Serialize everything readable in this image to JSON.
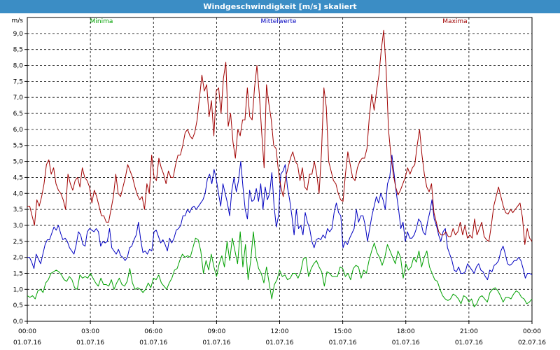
{
  "window": {
    "title": "Windgeschwindigkeit [m/s] skaliert"
  },
  "chart_data": {
    "type": "line",
    "title": "Windgeschwindigkeit [m/s] skaliert",
    "ylabel": "m/s",
    "xlabel": "",
    "ylim": [
      0,
      9.5
    ],
    "xlim": [
      0,
      24
    ],
    "grid": true,
    "legend_placement": "top",
    "y_ticks": [
      "0,0",
      "0,5",
      "1,0",
      "1,5",
      "2,0",
      "2,5",
      "3,0",
      "3,5",
      "4,0",
      "4,5",
      "5,0",
      "5,5",
      "6,0",
      "6,5",
      "7,0",
      "7,5",
      "8,0",
      "8,5",
      "9,0"
    ],
    "x_ticks": [
      {
        "time": "00:00",
        "date": "01.07.16"
      },
      {
        "time": "03:00",
        "date": "01.07.16"
      },
      {
        "time": "06:00",
        "date": "01.07.16"
      },
      {
        "time": "09:00",
        "date": "01.07.16"
      },
      {
        "time": "12:00",
        "date": "01.07.16"
      },
      {
        "time": "15:00",
        "date": "01.07.16"
      },
      {
        "time": "18:00",
        "date": "01.07.16"
      },
      {
        "time": "21:00",
        "date": "01.07.16"
      },
      {
        "time": "00:00",
        "date": "02.07.16"
      }
    ],
    "series": [
      {
        "name": "Minima",
        "color": "#00a000",
        "values": [
          0.8,
          0.75,
          0.8,
          0.7,
          0.95,
          1.0,
          0.9,
          1.2,
          1.3,
          1.5,
          1.55,
          1.6,
          1.55,
          1.45,
          1.3,
          1.25,
          1.4,
          1.3,
          1.05,
          1.0,
          1.45,
          1.35,
          1.4,
          1.35,
          1.5,
          1.35,
          1.2,
          1.1,
          1.35,
          1.15,
          1.15,
          1.1,
          1.3,
          1.0,
          1.2,
          1.35,
          1.15,
          1.1,
          1.25,
          1.65,
          1.2,
          1.0,
          1.05,
          1.0,
          0.9,
          1.0,
          1.2,
          1.05,
          1.35,
          1.3,
          1.45,
          1.2,
          1.1,
          1.0,
          1.2,
          1.35,
          1.6,
          1.65,
          1.9,
          2.1,
          2.0,
          2.05,
          2.0,
          2.3,
          2.6,
          2.55,
          2.2,
          1.5,
          1.9,
          1.6,
          2.1,
          1.7,
          1.4,
          1.8,
          2.05,
          1.7,
          2.5,
          1.9,
          2.6,
          2.2,
          1.8,
          2.8,
          1.7,
          2.4,
          1.3,
          1.9,
          2.8,
          2.0,
          1.65,
          1.5,
          1.2,
          1.7,
          1.2,
          0.7,
          1.15,
          1.3,
          1.6,
          1.4,
          1.45,
          1.3,
          1.35,
          1.5,
          1.5,
          1.35,
          1.55,
          1.95,
          2.0,
          1.4,
          1.65,
          1.8,
          1.9,
          1.7,
          1.55,
          1.1,
          1.55,
          1.5,
          1.4,
          1.4,
          1.4,
          1.7,
          1.65,
          1.4,
          1.5,
          1.3,
          1.65,
          1.75,
          1.7,
          1.35,
          1.6,
          1.5,
          1.9,
          2.2,
          2.45,
          2.15,
          2.0,
          1.75,
          2.0,
          2.4,
          2.2,
          2.0,
          1.8,
          2.2,
          2.0,
          1.35,
          1.8,
          1.6,
          1.7,
          2.0,
          1.85,
          2.2,
          1.7,
          2.0,
          2.2,
          1.7,
          1.5,
          1.3,
          1.25,
          1.0,
          0.8,
          0.7,
          0.65,
          0.7,
          0.85,
          0.8,
          0.7,
          0.55,
          0.8,
          0.75,
          0.6,
          0.7,
          0.45,
          0.55,
          0.75,
          0.8,
          0.7,
          0.6,
          0.9,
          1.0,
          1.05,
          0.95,
          0.8,
          0.6,
          0.75,
          0.75,
          0.7,
          0.85,
          0.95,
          0.9,
          0.75,
          0.7,
          0.55,
          0.6,
          0.7
        ]
      },
      {
        "name": "Mittelwerte",
        "color": "#0000c0",
        "values": [
          2.0,
          2.0,
          1.85,
          1.65,
          2.1,
          1.95,
          1.8,
          2.1,
          2.4,
          2.55,
          2.55,
          2.75,
          2.95,
          2.85,
          3.0,
          2.75,
          2.55,
          2.6,
          2.5,
          2.3,
          2.2,
          2.1,
          2.4,
          2.8,
          2.7,
          2.4,
          2.35,
          2.8,
          2.9,
          2.85,
          2.8,
          2.9,
          2.8,
          2.35,
          2.5,
          2.45,
          2.5,
          2.9,
          2.3,
          2.2,
          2.1,
          2.25,
          2.05,
          2.0,
          1.9,
          2.0,
          2.3,
          2.35,
          2.55,
          2.7,
          3.1,
          2.55,
          2.15,
          2.2,
          2.1,
          2.25,
          2.2,
          2.8,
          2.85,
          2.65,
          2.45,
          2.55,
          2.4,
          2.2,
          2.6,
          2.45,
          2.6,
          2.85,
          2.9,
          3.0,
          3.3,
          3.3,
          3.5,
          3.4,
          3.55,
          3.6,
          3.5,
          3.6,
          3.7,
          3.8,
          4.0,
          4.45,
          4.6,
          4.3,
          4.75,
          4.45,
          4.0,
          3.6,
          4.3,
          4.0,
          3.7,
          3.3,
          4.1,
          4.5,
          4.05,
          4.4,
          5.0,
          4.2,
          3.5,
          3.2,
          4.1,
          3.75,
          3.8,
          4.15,
          3.75,
          4.3,
          3.5,
          4.2,
          3.8,
          4.0,
          4.65,
          3.6,
          2.95,
          3.3,
          4.6,
          4.7,
          4.9,
          4.2,
          3.8,
          3.3,
          2.7,
          3.5,
          2.9,
          3.0,
          2.7,
          3.4,
          3.1,
          2.9,
          2.5,
          2.3,
          2.55,
          2.6,
          2.55,
          2.7,
          2.6,
          2.9,
          2.8,
          2.9,
          3.4,
          3.7,
          3.4,
          3.3,
          2.3,
          2.5,
          2.4,
          2.6,
          2.75,
          2.9,
          3.5,
          3.1,
          3.3,
          3.3,
          3.0,
          2.5,
          2.9,
          3.3,
          3.6,
          3.9,
          3.7,
          4.0,
          3.8,
          3.5,
          4.3,
          4.5,
          5.2,
          4.6,
          4.0,
          3.5,
          2.9,
          3.1,
          2.5,
          2.8,
          2.6,
          2.6,
          2.7,
          2.9,
          3.2,
          3.1,
          2.8,
          2.7,
          3.1,
          3.4,
          3.8,
          3.2,
          3.0,
          2.7,
          2.5,
          2.8,
          2.9,
          2.3,
          2.1,
          1.9,
          1.6,
          1.55,
          1.7,
          1.5,
          1.5,
          1.55,
          1.8,
          1.7,
          1.6,
          1.5,
          1.7,
          1.8,
          1.6,
          1.55,
          1.4,
          1.3,
          1.6,
          1.55,
          1.75,
          1.8,
          1.9,
          2.2,
          2.35,
          2.1,
          1.8,
          1.75,
          1.8,
          1.9,
          1.9,
          2.0,
          1.9,
          1.65,
          1.35,
          1.5,
          1.5,
          1.45
        ]
      },
      {
        "name": "Maxima",
        "color": "#a00000",
        "values": [
          3.6,
          3.6,
          3.3,
          3.0,
          3.8,
          3.6,
          3.9,
          4.3,
          4.9,
          5.05,
          4.6,
          4.8,
          4.3,
          4.1,
          4.0,
          3.8,
          3.5,
          4.6,
          4.3,
          4.1,
          4.4,
          4.5,
          4.2,
          4.8,
          4.5,
          4.4,
          4.2,
          3.7,
          4.1,
          3.9,
          3.6,
          3.3,
          3.3,
          3.1,
          3.1,
          3.5,
          3.9,
          4.6,
          4.0,
          3.9,
          4.2,
          4.5,
          4.9,
          4.7,
          4.5,
          4.2,
          3.95,
          3.8,
          3.9,
          3.5,
          4.3,
          4.0,
          5.2,
          4.5,
          4.4,
          5.1,
          4.8,
          4.6,
          4.3,
          4.7,
          4.5,
          4.5,
          4.9,
          5.2,
          5.2,
          5.5,
          5.9,
          6.0,
          5.8,
          5.7,
          5.9,
          6.3,
          7.0,
          7.7,
          7.2,
          7.4,
          6.4,
          6.9,
          5.8,
          7.2,
          7.3,
          6.5,
          7.6,
          8.1,
          6.1,
          6.5,
          5.6,
          5.1,
          6.0,
          5.8,
          6.3,
          6.3,
          7.3,
          6.4,
          6.3,
          7.3,
          8.0,
          7.1,
          5.9,
          4.8,
          7.4,
          6.8,
          6.3,
          5.5,
          5.4,
          4.7,
          4.2,
          3.9,
          4.5,
          4.8,
          5.1,
          5.3,
          5.0,
          4.9,
          4.4,
          4.8,
          4.2,
          4.1,
          4.6,
          4.6,
          5.0,
          4.6,
          4.0,
          5.3,
          7.3,
          6.7,
          5.0,
          4.7,
          4.4,
          4.3,
          4.0,
          3.8,
          3.75,
          4.6,
          5.3,
          4.9,
          4.5,
          4.4,
          4.8,
          5.0,
          5.1,
          5.1,
          5.4,
          6.4,
          7.1,
          6.6,
          7.2,
          7.7,
          8.5,
          9.1,
          7.9,
          6.0,
          5.2,
          4.6,
          4.2,
          3.95,
          4.1,
          4.3,
          4.5,
          4.8,
          4.6,
          4.8,
          4.9,
          5.5,
          6.0,
          5.2,
          4.6,
          4.2,
          4.05,
          4.3,
          3.4,
          3.1,
          2.8,
          2.7,
          2.7,
          2.8,
          2.65,
          2.65,
          2.9,
          2.7,
          2.8,
          3.1,
          2.7,
          3.0,
          2.6,
          2.7,
          2.6,
          3.2,
          2.7,
          2.9,
          3.1,
          2.65,
          2.55,
          2.5,
          3.0,
          3.6,
          3.9,
          4.2,
          3.9,
          3.6,
          3.4,
          3.35,
          3.5,
          3.4,
          3.5,
          3.6,
          3.7,
          3.25,
          2.4,
          2.9,
          2.6,
          2.5
        ]
      }
    ]
  }
}
